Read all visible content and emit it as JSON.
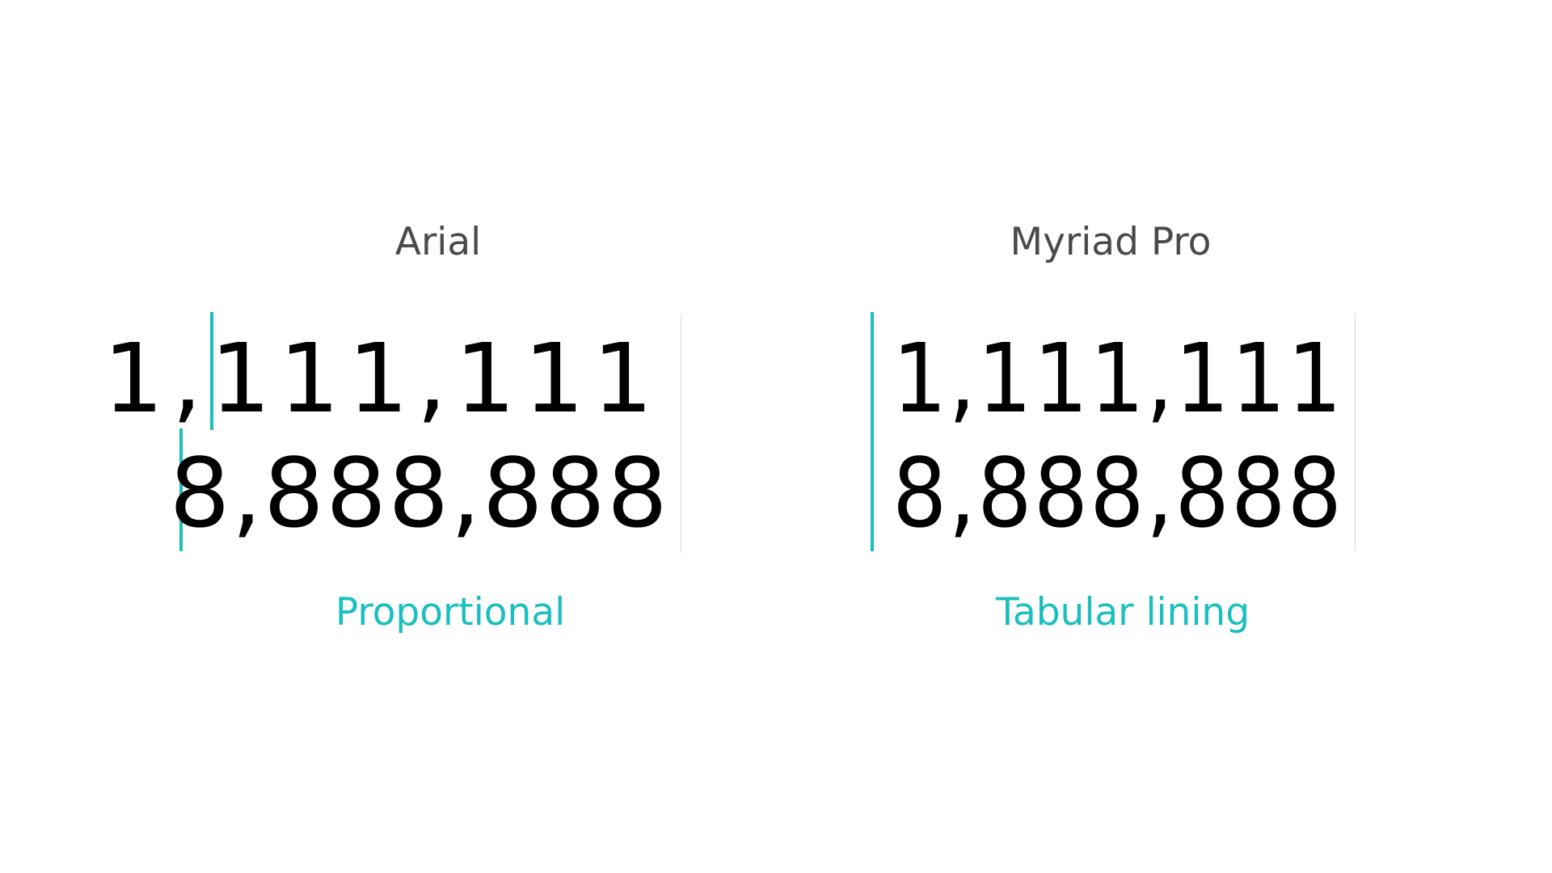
{
  "columns": [
    {
      "font_label": "Arial",
      "numbers": [
        "1,111,111",
        "8,888,888"
      ],
      "caption": "Proportional"
    },
    {
      "font_label": "Myriad Pro",
      "numbers": [
        "1,111,111",
        "8,888,888"
      ],
      "caption": "Tabular lining"
    }
  ],
  "colors": {
    "accent": "#1bbfbf",
    "heading": "#4a4a4a",
    "digits": "#000000",
    "divider": "#d8d8d8"
  }
}
